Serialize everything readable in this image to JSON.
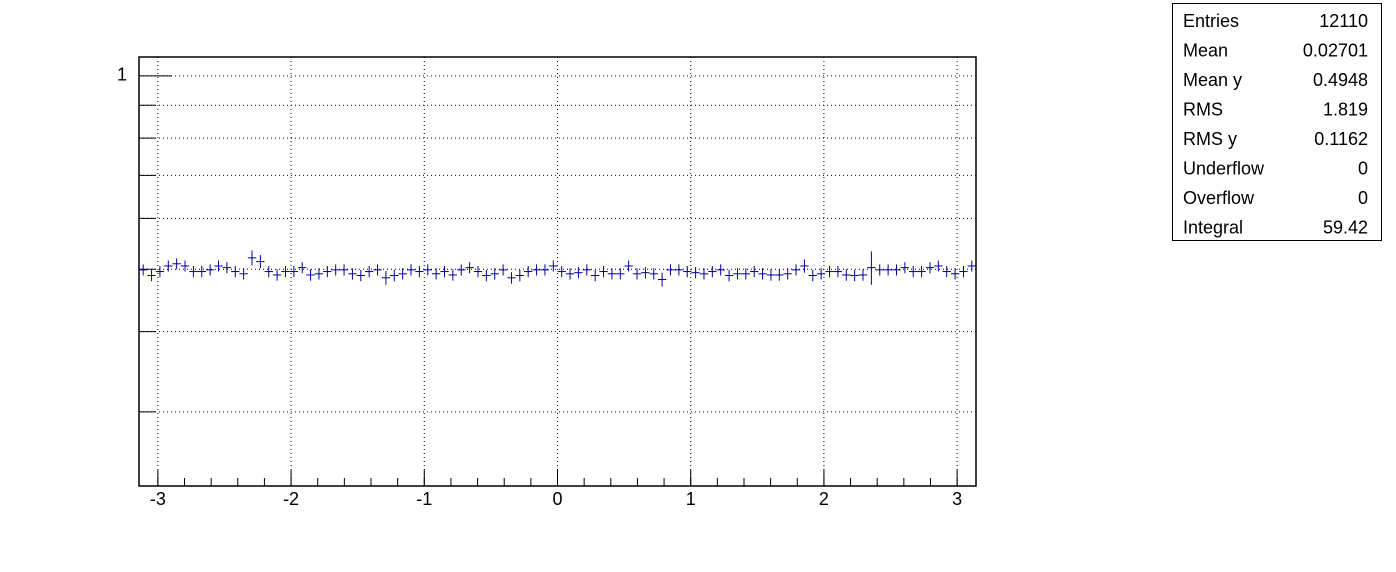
{
  "chart_data": {
    "type": "profile",
    "xlim": [
      -3.1416,
      3.1416
    ],
    "xticks": [
      -3,
      -2,
      -1,
      0,
      1,
      2,
      3
    ],
    "xminor": 0.2,
    "ylim": [
      0.23,
      1.07
    ],
    "yticks": [
      1
    ],
    "yminor_ticks": [
      0.3,
      0.4,
      0.5,
      0.6,
      0.7,
      0.8,
      0.9
    ],
    "logy": true,
    "grid": true,
    "color": "#000099",
    "values": [
      0.499,
      0.489,
      0.496,
      0.506,
      0.51,
      0.506,
      0.496,
      0.496,
      0.499,
      0.506,
      0.503,
      0.496,
      0.492,
      0.521,
      0.514,
      0.496,
      0.49,
      0.496,
      0.496,
      0.503,
      0.49,
      0.492,
      0.496,
      0.499,
      0.499,
      0.492,
      0.489,
      0.496,
      0.499,
      0.485,
      0.489,
      0.492,
      0.499,
      0.496,
      0.499,
      0.492,
      0.496,
      0.49,
      0.499,
      0.503,
      0.496,
      0.489,
      0.492,
      0.499,
      0.485,
      0.489,
      0.496,
      0.499,
      0.499,
      0.506,
      0.496,
      0.492,
      0.494,
      0.499,
      0.489,
      0.496,
      0.492,
      0.492,
      0.506,
      0.492,
      0.494,
      0.492,
      0.482,
      0.499,
      0.499,
      0.496,
      0.494,
      0.492,
      0.496,
      0.499,
      0.489,
      0.492,
      0.492,
      0.496,
      0.492,
      0.49,
      0.49,
      0.492,
      0.499,
      0.506,
      0.489,
      0.492,
      0.496,
      0.496,
      0.49,
      0.489,
      0.49,
      0.503,
      0.499,
      0.499,
      0.499,
      0.503,
      0.496,
      0.496,
      0.503,
      0.506,
      0.496,
      0.492,
      0.496,
      0.506
    ],
    "errors": [
      0.01,
      0.01,
      0.01,
      0.01,
      0.01,
      0.01,
      0.01,
      0.01,
      0.01,
      0.01,
      0.01,
      0.01,
      0.01,
      0.014,
      0.012,
      0.01,
      0.01,
      0.01,
      0.01,
      0.01,
      0.01,
      0.01,
      0.01,
      0.01,
      0.01,
      0.01,
      0.01,
      0.01,
      0.01,
      0.012,
      0.01,
      0.01,
      0.01,
      0.01,
      0.01,
      0.01,
      0.01,
      0.01,
      0.01,
      0.01,
      0.01,
      0.01,
      0.01,
      0.01,
      0.01,
      0.01,
      0.01,
      0.01,
      0.01,
      0.01,
      0.01,
      0.01,
      0.01,
      0.01,
      0.01,
      0.01,
      0.01,
      0.01,
      0.01,
      0.01,
      0.01,
      0.01,
      0.012,
      0.01,
      0.01,
      0.01,
      0.01,
      0.01,
      0.01,
      0.01,
      0.01,
      0.01,
      0.01,
      0.01,
      0.01,
      0.01,
      0.01,
      0.01,
      0.01,
      0.012,
      0.01,
      0.01,
      0.01,
      0.01,
      0.01,
      0.01,
      0.01,
      0.03,
      0.01,
      0.01,
      0.01,
      0.01,
      0.01,
      0.01,
      0.01,
      0.01,
      0.01,
      0.01,
      0.01,
      0.01
    ],
    "stats": [
      {
        "label": "Entries",
        "value": 12110
      },
      {
        "label": "Mean",
        "value": 0.02701
      },
      {
        "label": "Mean y",
        "value": 0.4948
      },
      {
        "label": "RMS",
        "value": 1.819
      },
      {
        "label": "RMS y",
        "value": 0.1162
      },
      {
        "label": "Underflow",
        "value": 0
      },
      {
        "label": "Overflow",
        "value": 0
      },
      {
        "label": "Integral",
        "value": 59.42
      }
    ]
  }
}
